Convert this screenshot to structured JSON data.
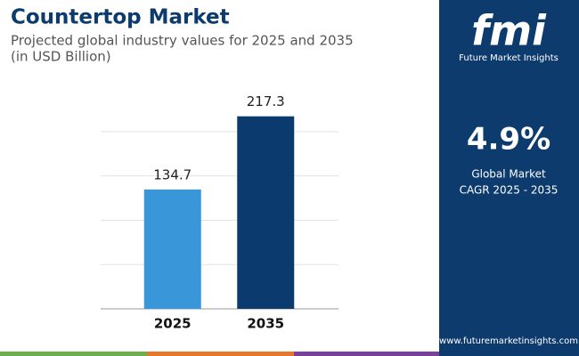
{
  "chart_data": {
    "type": "bar",
    "title": "Countertop Market",
    "subtitle": [
      "Projected global industry values for 2025 and 2035",
      "(in USD Billion)"
    ],
    "categories": [
      "2025",
      "2035"
    ],
    "values": [
      134.7,
      217.3
    ],
    "colors": [
      "#3896d9",
      "#0a3a6e"
    ],
    "ylim": [
      0,
      220
    ],
    "yticks": [
      0,
      50,
      100,
      150,
      200
    ],
    "grid": true
  },
  "sidebar": {
    "logo": "fmi",
    "brand": "Future Market Insights",
    "cagr": "4.9%",
    "cagr_label": [
      "Global Market",
      "CAGR 2025 - 2035"
    ],
    "website": "www.futuremarketinsights.com"
  }
}
